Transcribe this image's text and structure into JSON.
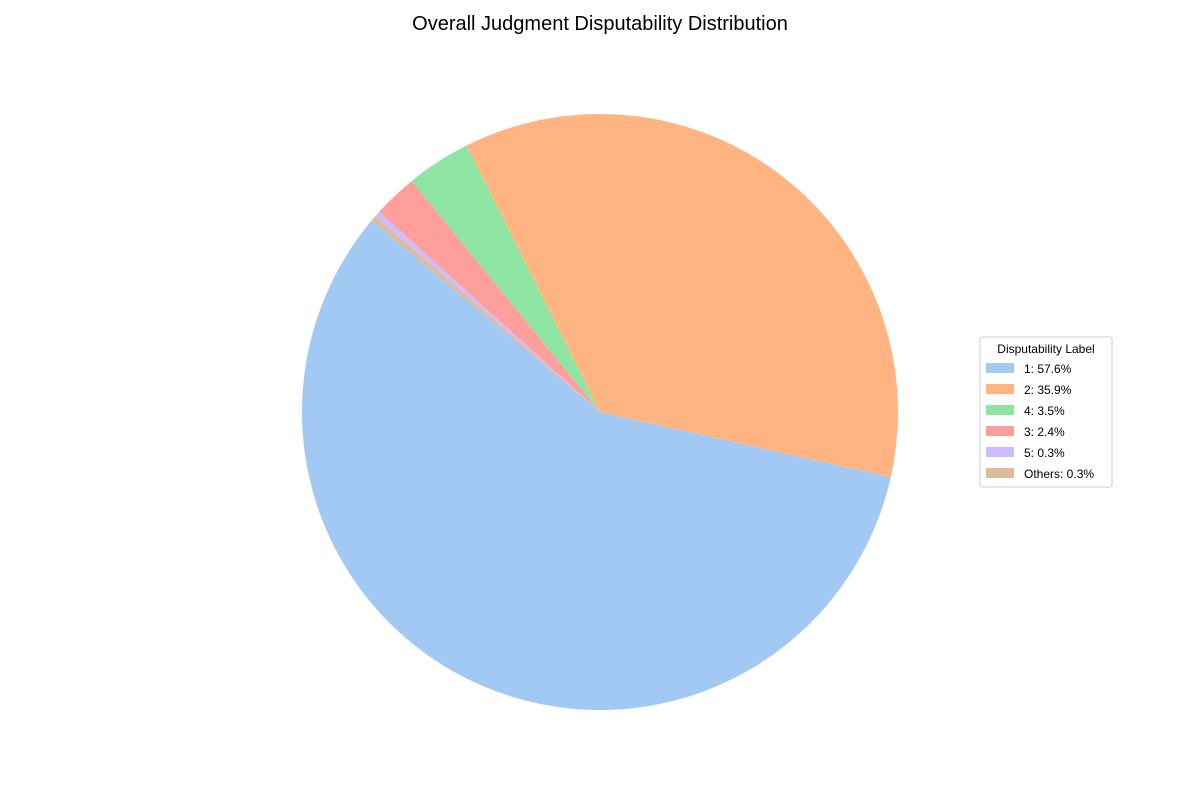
{
  "chart_data": {
    "type": "pie",
    "title": "Overall Judgment Disputability Distribution",
    "legend": {
      "title": "Disputability Label",
      "placement": "center-right"
    },
    "slices": [
      {
        "label": "1",
        "legend_text": "1: 57.6%",
        "value": 57.6,
        "color": "#a1c9f4"
      },
      {
        "label": "2",
        "legend_text": "2: 35.9%",
        "value": 35.9,
        "color": "#ffb482"
      },
      {
        "label": "4",
        "legend_text": "4: 3.5%",
        "value": 3.5,
        "color": "#8de5a1"
      },
      {
        "label": "3",
        "legend_text": "3: 2.4%",
        "value": 2.4,
        "color": "#ff9f9b"
      },
      {
        "label": "5",
        "legend_text": "5: 0.3%",
        "value": 0.3,
        "color": "#d0bbff"
      },
      {
        "label": "Others",
        "legend_text": "Others: 0.3%",
        "value": 0.3,
        "color": "#debb9b"
      }
    ],
    "start_angle_deg": 140,
    "direction": "counterclockwise",
    "grid": false
  }
}
